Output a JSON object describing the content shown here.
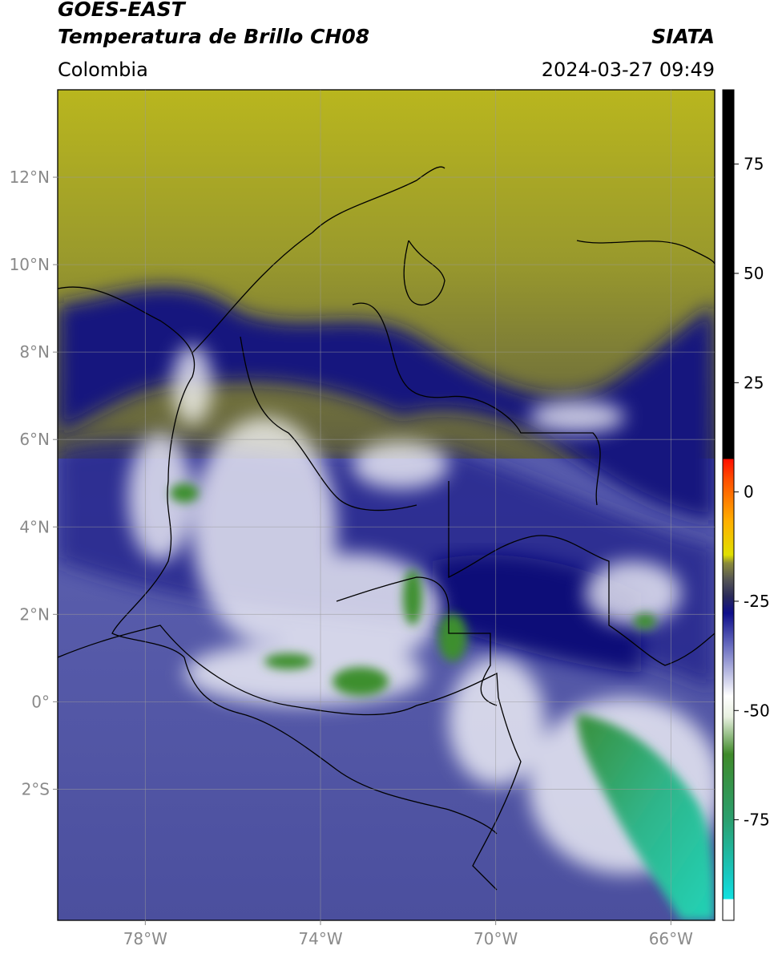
{
  "header": {
    "title": "GOES-EAST",
    "subtitle": "Temperatura de Brillo CH08",
    "region": "Colombia",
    "source": "SIATA",
    "datetime": "2024-03-27 09:49"
  },
  "map": {
    "xlim": [
      -80,
      -65
    ],
    "ylim": [
      -5,
      14
    ],
    "xticks": [
      {
        "value": -78,
        "label": "78°W"
      },
      {
        "value": -74,
        "label": "74°W"
      },
      {
        "value": -70,
        "label": "70°W"
      },
      {
        "value": -66,
        "label": "66°W"
      }
    ],
    "yticks": [
      {
        "value": 12,
        "label": "12°N"
      },
      {
        "value": 10,
        "label": "10°N"
      },
      {
        "value": 8,
        "label": "8°N"
      },
      {
        "value": 6,
        "label": "6°N"
      },
      {
        "value": 4,
        "label": "4°N"
      },
      {
        "value": 2,
        "label": "2°N"
      },
      {
        "value": 0,
        "label": "0°"
      },
      {
        "value": -2,
        "label": "2°S"
      }
    ],
    "grid": true
  },
  "colorbar": {
    "lim": [
      -98,
      92
    ],
    "ticks": [
      75,
      50,
      25,
      0,
      -25,
      -50,
      -75
    ]
  }
}
